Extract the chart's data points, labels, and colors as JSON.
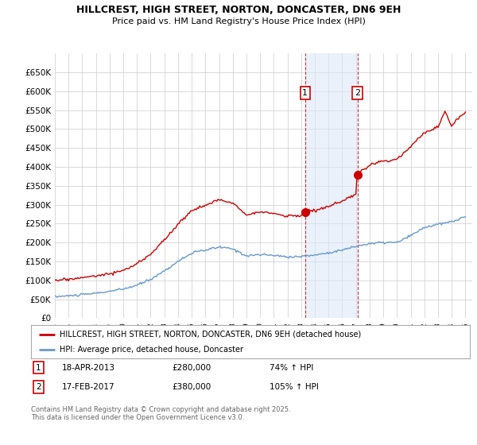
{
  "title": "HILLCREST, HIGH STREET, NORTON, DONCASTER, DN6 9EH",
  "subtitle": "Price paid vs. HM Land Registry's House Price Index (HPI)",
  "property_color": "#cc0000",
  "hpi_color": "#6699cc",
  "hpi_fill_color": "#dce8f8",
  "background_color": "#ffffff",
  "grid_color": "#cccccc",
  "sale1_year": 2013.29,
  "sale1_price": 280000,
  "sale2_year": 2017.12,
  "sale2_price": 380000,
  "ylim": [
    0,
    700000
  ],
  "ytick_vals": [
    0,
    50000,
    100000,
    150000,
    200000,
    250000,
    300000,
    350000,
    400000,
    450000,
    500000,
    550000,
    600000,
    650000
  ],
  "ytick_labels": [
    "£0",
    "£50K",
    "£100K",
    "£150K",
    "£200K",
    "£250K",
    "£300K",
    "£350K",
    "£400K",
    "£450K",
    "£500K",
    "£550K",
    "£600K",
    "£650K"
  ],
  "xlim_left": 1995.0,
  "xlim_right": 2025.5,
  "legend_property": "HILLCREST, HIGH STREET, NORTON, DONCASTER, DN6 9EH (detached house)",
  "legend_hpi": "HPI: Average price, detached house, Doncaster",
  "copyright": "Contains HM Land Registry data © Crown copyright and database right 2025.\nThis data is licensed under the Open Government Licence v3.0."
}
